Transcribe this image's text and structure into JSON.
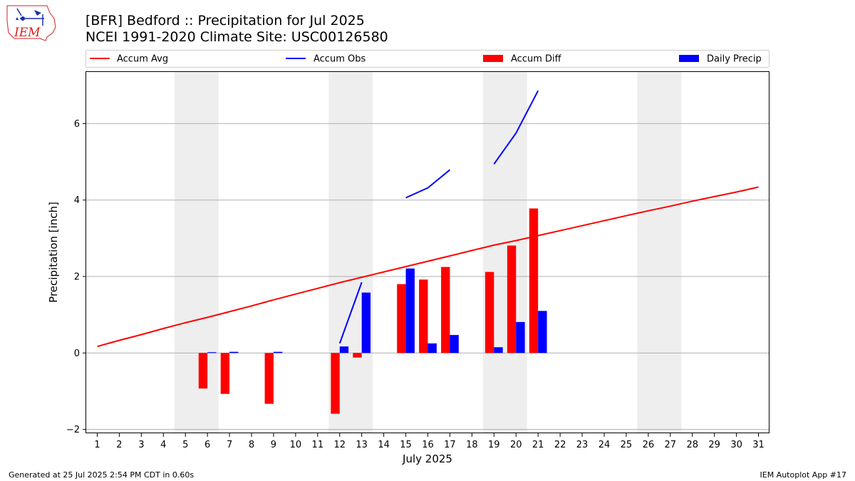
{
  "chart_data": {
    "type": "bar",
    "title_line1": "[BFR] Bedford :: Precipitation for Jul 2025",
    "title_line2": "NCEI 1991-2020 Climate Site: USC00126580",
    "xlabel": "July 2025",
    "ylabel": "Precipitation [inch]",
    "xlim": [
      0.5,
      31.5
    ],
    "ylim": [
      -2.1,
      7.35
    ],
    "yticks": [
      -2,
      0,
      2,
      4,
      6
    ],
    "ytick_labels": [
      "−2",
      "0",
      "2",
      "4",
      "6"
    ],
    "categories": [
      1,
      2,
      3,
      4,
      5,
      6,
      7,
      8,
      9,
      10,
      11,
      12,
      13,
      14,
      15,
      16,
      17,
      18,
      19,
      20,
      21,
      22,
      23,
      24,
      25,
      26,
      27,
      28,
      29,
      30,
      31
    ],
    "x_tick_labels": [
      "1",
      "2",
      "3",
      "4",
      "5",
      "6",
      "7",
      "8",
      "9",
      "10",
      "11",
      "12",
      "13",
      "14",
      "15",
      "16",
      "17",
      "18",
      "19",
      "20",
      "21",
      "22",
      "23",
      "24",
      "25",
      "26",
      "27",
      "28",
      "29",
      "30",
      "31"
    ],
    "weekend_bands": [
      [
        4.5,
        6.5
      ],
      [
        11.5,
        13.5
      ],
      [
        18.5,
        20.5
      ],
      [
        25.5,
        27.5
      ]
    ],
    "legend": {
      "placement": "top",
      "entries": [
        {
          "label": "Accum Avg",
          "kind": "line",
          "color": "#ff0000"
        },
        {
          "label": "Accum Obs",
          "kind": "line",
          "color": "#0000ff"
        },
        {
          "label": "Accum Diff",
          "kind": "bar",
          "color": "#ff0000"
        },
        {
          "label": "Daily Precip",
          "kind": "bar",
          "color": "#0000ff"
        }
      ]
    },
    "series": [
      {
        "name": "Accum Avg",
        "type": "line",
        "color": "#ff0000",
        "values": [
          0.17,
          0.33,
          0.48,
          0.64,
          0.79,
          0.93,
          1.08,
          1.23,
          1.39,
          1.54,
          1.69,
          1.84,
          1.98,
          2.12,
          2.26,
          2.4,
          2.54,
          2.68,
          2.82,
          2.94,
          3.07,
          3.2,
          3.33,
          3.46,
          3.59,
          3.72,
          3.84,
          3.97,
          4.09,
          4.21,
          4.34
        ]
      },
      {
        "name": "Accum Obs",
        "type": "line",
        "color": "#0000ff",
        "values": [
          null,
          null,
          null,
          null,
          null,
          null,
          null,
          null,
          null,
          null,
          null,
          0.25,
          1.85,
          null,
          4.06,
          4.32,
          4.79,
          null,
          4.94,
          5.75,
          6.86,
          null,
          null,
          null,
          null,
          null,
          null,
          null,
          null,
          null,
          null
        ]
      },
      {
        "name": "Accum Diff",
        "type": "bar",
        "color": "#ff0000",
        "values": [
          null,
          null,
          null,
          null,
          null,
          -0.93,
          -1.07,
          null,
          -1.33,
          null,
          null,
          -1.59,
          -0.12,
          null,
          1.8,
          1.92,
          2.25,
          null,
          2.12,
          2.81,
          3.78,
          null,
          null,
          null,
          null,
          null,
          null,
          null,
          null,
          null,
          null
        ]
      },
      {
        "name": "Daily Precip",
        "type": "bar",
        "color": "#0000ff",
        "values": [
          null,
          null,
          null,
          null,
          null,
          0.02,
          0.03,
          null,
          0.03,
          null,
          null,
          0.17,
          1.58,
          null,
          2.21,
          0.25,
          0.47,
          null,
          0.15,
          0.81,
          1.1,
          null,
          null,
          null,
          null,
          null,
          null,
          null,
          null,
          null,
          null
        ]
      }
    ]
  },
  "logo": {
    "text": "IEM"
  },
  "footer": {
    "left": "Generated at 25 Jul 2025 2:54 PM CDT in 0.60s",
    "right": "IEM Autoplot App #17"
  }
}
